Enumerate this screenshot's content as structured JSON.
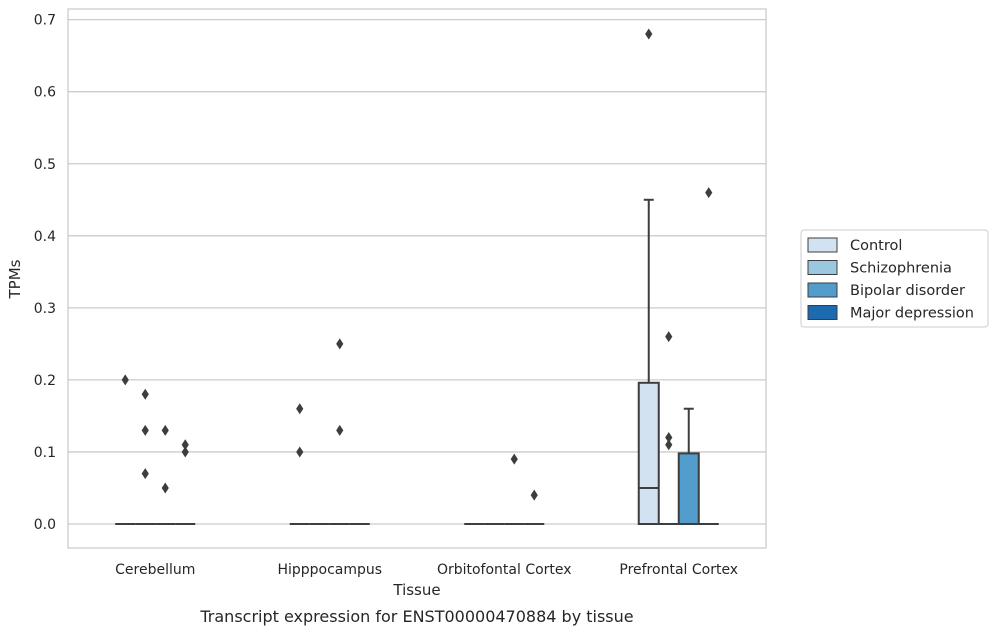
{
  "chart_data": {
    "type": "box",
    "title": "",
    "caption": "Transcript expression for ENST00000470884 by tissue",
    "xlabel": "Tissue",
    "ylabel": "TPMs",
    "ylim": [
      -0.034,
      0.715
    ],
    "yticks": [
      "0.0",
      "0.1",
      "0.2",
      "0.3",
      "0.4",
      "0.5",
      "0.6",
      "0.7"
    ],
    "grid": true,
    "legend_position": "right",
    "categories": [
      "Cerebellum",
      "Hipppocampus",
      "Orbitofontal Cortex",
      "Prefrontal Cortex"
    ],
    "series": [
      {
        "name": "Control",
        "color": "#d2e2f1",
        "boxes": [
          {
            "category": "Cerebellum",
            "q1": 0,
            "median": 0,
            "q3": 0,
            "whisker_low": 0,
            "whisker_high": 0,
            "outliers": [
              0.2
            ]
          },
          {
            "category": "Hipppocampus",
            "q1": 0,
            "median": 0,
            "q3": 0,
            "whisker_low": 0,
            "whisker_high": 0,
            "outliers": [
              0.16,
              0.1
            ]
          },
          {
            "category": "Orbitofontal Cortex",
            "q1": 0,
            "median": 0,
            "q3": 0,
            "whisker_low": 0,
            "whisker_high": 0,
            "outliers": []
          },
          {
            "category": "Prefrontal Cortex",
            "q1": 0,
            "median": 0.05,
            "q3": 0.196,
            "whisker_low": 0,
            "whisker_high": 0.45,
            "outliers": [
              0.68
            ]
          }
        ]
      },
      {
        "name": "Schizophrenia",
        "color": "#9ac8e0",
        "boxes": [
          {
            "category": "Cerebellum",
            "q1": 0,
            "median": 0,
            "q3": 0,
            "whisker_low": 0,
            "whisker_high": 0,
            "outliers": [
              0.18,
              0.13,
              0.07
            ]
          },
          {
            "category": "Hipppocampus",
            "q1": 0,
            "median": 0,
            "q3": 0,
            "whisker_low": 0,
            "whisker_high": 0,
            "outliers": []
          },
          {
            "category": "Orbitofontal Cortex",
            "q1": 0,
            "median": 0,
            "q3": 0,
            "whisker_low": 0,
            "whisker_high": 0,
            "outliers": []
          },
          {
            "category": "Prefrontal Cortex",
            "q1": 0,
            "median": 0,
            "q3": 0,
            "whisker_low": 0,
            "whisker_high": 0,
            "outliers": [
              0.26,
              0.12,
              0.11
            ]
          }
        ]
      },
      {
        "name": "Bipolar disorder",
        "color": "#529dcc",
        "boxes": [
          {
            "category": "Cerebellum",
            "q1": 0,
            "median": 0,
            "q3": 0,
            "whisker_low": 0,
            "whisker_high": 0,
            "outliers": [
              0.13,
              0.05
            ]
          },
          {
            "category": "Hipppocampus",
            "q1": 0,
            "median": 0,
            "q3": 0,
            "whisker_low": 0,
            "whisker_high": 0,
            "outliers": [
              0.25,
              0.13
            ]
          },
          {
            "category": "Orbitofontal Cortex",
            "q1": 0,
            "median": 0,
            "q3": 0,
            "whisker_low": 0,
            "whisker_high": 0,
            "outliers": [
              0.09
            ]
          },
          {
            "category": "Prefrontal Cortex",
            "q1": 0,
            "median": 0,
            "q3": 0.098,
            "whisker_low": 0,
            "whisker_high": 0.16,
            "outliers": []
          }
        ]
      },
      {
        "name": "Major depression",
        "color": "#1c6aaf",
        "boxes": [
          {
            "category": "Cerebellum",
            "q1": 0,
            "median": 0,
            "q3": 0,
            "whisker_low": 0,
            "whisker_high": 0,
            "outliers": [
              0.1,
              0.11
            ]
          },
          {
            "category": "Hipppocampus",
            "q1": 0,
            "median": 0,
            "q3": 0,
            "whisker_low": 0,
            "whisker_high": 0,
            "outliers": []
          },
          {
            "category": "Orbitofontal Cortex",
            "q1": 0,
            "median": 0,
            "q3": 0,
            "whisker_low": 0,
            "whisker_high": 0,
            "outliers": [
              0.04
            ]
          },
          {
            "category": "Prefrontal Cortex",
            "q1": 0,
            "median": 0,
            "q3": 0,
            "whisker_low": 0,
            "whisker_high": 0,
            "outliers": [
              0.46
            ]
          }
        ]
      }
    ]
  }
}
